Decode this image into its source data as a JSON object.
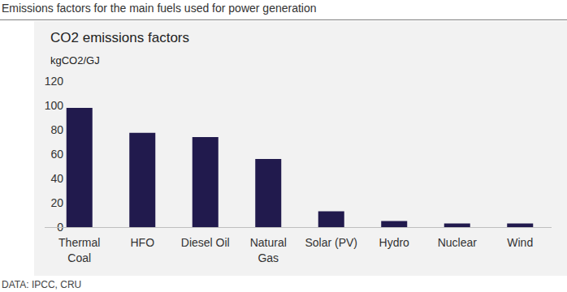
{
  "chart_data": {
    "type": "bar",
    "title": "Emissions factors for the main fuels used for power generation",
    "subtitle": "CO2 emissions factors",
    "y_label": "kgCO2/GJ",
    "source": "DATA: IPCC, CRU",
    "categories": [
      "Thermal Coal",
      "HFO",
      "Diesel Oil",
      "Natural Gas",
      "Solar (PV)",
      "Hydro",
      "Nuclear",
      "Wind"
    ],
    "values": [
      98,
      77.5,
      74,
      56,
      13,
      5,
      3,
      3
    ],
    "color": "#211a4d",
    "ylim": [
      0,
      120
    ],
    "yticks": [
      0,
      20,
      40,
      60,
      80,
      100,
      120
    ],
    "grid": false
  }
}
